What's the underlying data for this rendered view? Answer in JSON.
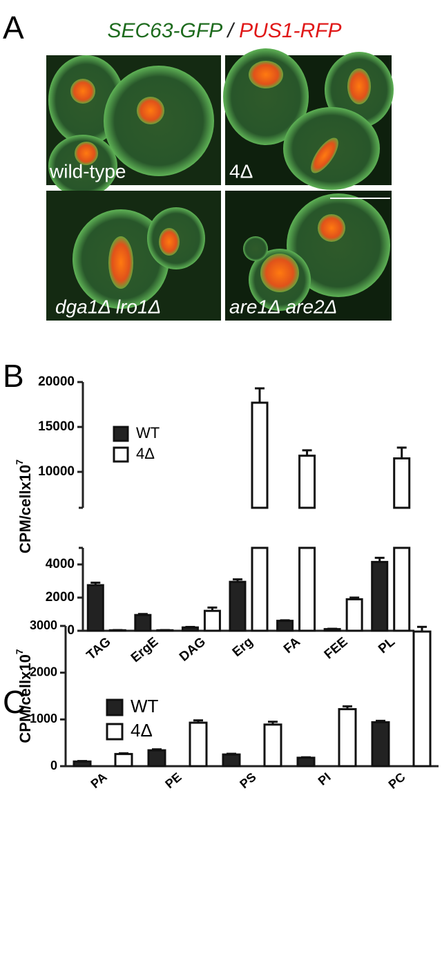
{
  "panel_a": {
    "label": "A",
    "title_parts": [
      "SEC63-GFP",
      "/",
      "PUS1-RFP"
    ],
    "image_labels": [
      "wild-type",
      "4Δ",
      "dga1Δ lro1Δ",
      "are1Δ are2Δ"
    ]
  },
  "chart_data": [
    {
      "type": "bar",
      "panel_label": "B",
      "ylabel": "CPM/cellx10",
      "ylabel_superscript": "7",
      "categories": [
        "TAG",
        "ErgE",
        "DAG",
        "Erg",
        "FA",
        "FEE",
        "PL"
      ],
      "series": [
        {
          "name": "WT",
          "color": "#222222",
          "values": [
            2750,
            950,
            200,
            2950,
            600,
            100,
            4150
          ],
          "errors": [
            150,
            60,
            30,
            150,
            30,
            20,
            250
          ]
        },
        {
          "name": "4Δ",
          "color": "#ffffff",
          "values": [
            30,
            30,
            1200,
            17700,
            11800,
            1900,
            11500
          ],
          "errors": [
            10,
            10,
            200,
            1600,
            600,
            100,
            1200
          ]
        }
      ],
      "ylim": [
        0,
        20000
      ],
      "y_break": [
        5000,
        6000
      ],
      "yticks": [
        0,
        2000,
        4000,
        10000,
        15000,
        20000
      ],
      "legend": "upper left"
    },
    {
      "type": "bar",
      "panel_label": "C",
      "ylabel": "CPM/cellx10",
      "ylabel_superscript": "7",
      "categories": [
        "PA",
        "PE",
        "PS",
        "PI",
        "PC"
      ],
      "series": [
        {
          "name": "WT",
          "color": "#222222",
          "values": [
            100,
            340,
            250,
            180,
            940
          ],
          "errors": [
            10,
            20,
            15,
            10,
            30
          ]
        },
        {
          "name": "4Δ",
          "color": "#ffffff",
          "values": [
            260,
            930,
            890,
            1220,
            2880
          ],
          "errors": [
            15,
            50,
            60,
            60,
            100
          ]
        }
      ],
      "ylim": [
        0,
        3000
      ],
      "yticks": [
        0,
        1000,
        2000,
        3000
      ],
      "legend": "upper left"
    }
  ]
}
